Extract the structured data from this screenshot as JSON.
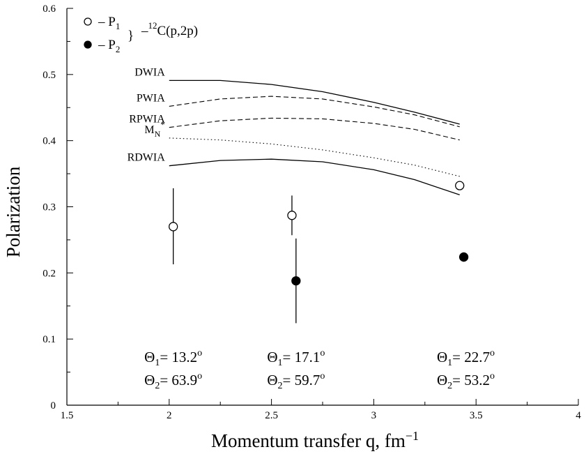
{
  "chart_data": {
    "type": "scatter",
    "xlabel": "Momentum transfer q, fm",
    "xlabel_sup": "−1",
    "ylabel": "Polarization",
    "xlim": [
      1.5,
      4
    ],
    "ylim": [
      0,
      0.6
    ],
    "xticks": [
      1.5,
      2,
      2.5,
      3,
      3.5,
      4
    ],
    "xtick_labels": [
      "1.5",
      "2",
      "2.5",
      "3",
      "3.5",
      "4"
    ],
    "yticks": [
      0,
      0.1,
      0.2,
      0.3,
      0.4,
      0.5,
      0.6
    ],
    "ytick_labels": [
      "0",
      "0.1",
      "0.2",
      "0.3",
      "0.4",
      "0.5",
      "0.6"
    ],
    "grid": false,
    "legend_position": "top-left",
    "legend": {
      "entries": [
        {
          "marker": "open-circle",
          "prefix": "– P",
          "subscript": "1"
        },
        {
          "marker": "filled-circle",
          "prefix": "– P",
          "subscript": "2"
        }
      ],
      "reaction_prefix": "–",
      "reaction_sup": "12",
      "reaction_text": "C(p,2p)"
    },
    "series": [
      {
        "name": "P1",
        "marker": "open-circle",
        "points": [
          {
            "x": 2.02,
            "y": 0.27,
            "err_low": 0.213,
            "err_high": 0.328
          },
          {
            "x": 2.6,
            "y": 0.287,
            "err_low": 0.257,
            "err_high": 0.317
          },
          {
            "x": 3.42,
            "y": 0.332,
            "err_low": 0.326,
            "err_high": 0.338
          }
        ]
      },
      {
        "name": "P2",
        "marker": "filled-circle",
        "points": [
          {
            "x": 2.62,
            "y": 0.188,
            "err_low": 0.124,
            "err_high": 0.252
          },
          {
            "x": 3.44,
            "y": 0.224,
            "err_low": 0.217,
            "err_high": 0.231
          }
        ]
      }
    ],
    "curves": [
      {
        "name": "DWIA",
        "style": "solid",
        "label_main": "DWIA",
        "x": [
          2.0,
          2.25,
          2.5,
          2.75,
          3.0,
          3.2,
          3.42
        ],
        "y": [
          0.491,
          0.491,
          0.485,
          0.474,
          0.458,
          0.443,
          0.425
        ]
      },
      {
        "name": "PWIA",
        "style": "dashed",
        "label_main": "PWIA",
        "x": [
          2.0,
          2.25,
          2.5,
          2.75,
          3.0,
          3.2,
          3.42
        ],
        "y": [
          0.452,
          0.463,
          0.467,
          0.463,
          0.451,
          0.439,
          0.421
        ]
      },
      {
        "name": "RPWIA",
        "style": "dashed",
        "label_main": "RPWIA",
        "x": [
          2.0,
          2.25,
          2.5,
          2.75,
          3.0,
          3.2,
          3.42
        ],
        "y": [
          0.42,
          0.43,
          0.434,
          0.433,
          0.426,
          0.417,
          0.401
        ]
      },
      {
        "name": "MN*",
        "style": "dotted",
        "label_main": "M",
        "label_sub": "N",
        "label_sup": "*",
        "x": [
          2.0,
          2.25,
          2.5,
          2.75,
          3.0,
          3.2,
          3.42
        ],
        "y": [
          0.404,
          0.401,
          0.395,
          0.386,
          0.374,
          0.363,
          0.346
        ]
      },
      {
        "name": "RDWIA",
        "style": "solid",
        "label_main": "RDWIA",
        "x": [
          2.0,
          2.25,
          2.5,
          2.75,
          3.0,
          3.2,
          3.42
        ],
        "y": [
          0.362,
          0.37,
          0.372,
          0.368,
          0.356,
          0.341,
          0.318
        ]
      }
    ],
    "annotations": [
      {
        "x": 2.02,
        "theta1": "= 13.2",
        "theta2": "= 63.9"
      },
      {
        "x": 2.62,
        "theta1": "= 17.1",
        "theta2": "= 59.7"
      },
      {
        "x": 3.45,
        "theta1": "= 22.7",
        "theta2": "= 53.2"
      }
    ],
    "angle_symbol": "Θ",
    "angle_sub1": "1",
    "angle_sub2": "2",
    "degree_sup": "o"
  }
}
